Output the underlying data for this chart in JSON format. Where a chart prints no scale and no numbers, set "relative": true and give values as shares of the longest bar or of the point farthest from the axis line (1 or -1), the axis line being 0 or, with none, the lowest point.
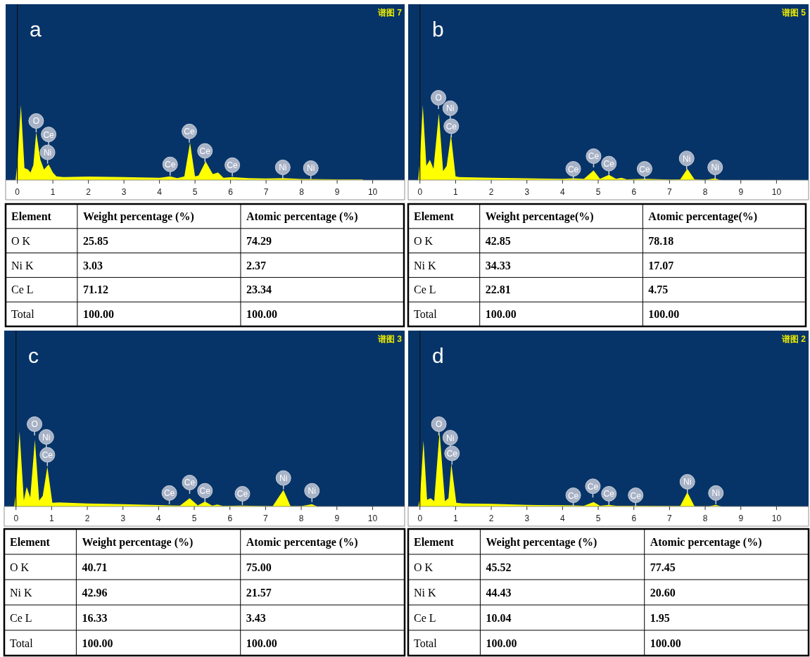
{
  "chart_data": [
    {
      "type": "area",
      "title": "a",
      "relative": true,
      "xlim": [
        -0.33,
        10.9
      ],
      "xticks": [
        0,
        1,
        2,
        3,
        4,
        5,
        6,
        7,
        8,
        9,
        10
      ],
      "annotations": [
        "谱图 7",
        {
          "text": "O",
          "x": 0.53,
          "y": 0.79
        },
        {
          "text": "Ce",
          "x": 0.88,
          "y": 0.61
        },
        {
          "text": "Ni",
          "x": 0.85,
          "y": 0.37
        },
        {
          "text": "Ce",
          "x": 4.3,
          "y": 0.21
        },
        {
          "text": "Ce",
          "x": 4.84,
          "y": 0.65
        },
        {
          "text": "Ce",
          "x": 5.28,
          "y": 0.39
        },
        {
          "text": "Ce",
          "x": 6.05,
          "y": 0.2
        },
        {
          "text": "Ni",
          "x": 7.47,
          "y": 0.17
        },
        {
          "text": "Ni",
          "x": 8.26,
          "y": 0.16
        }
      ],
      "series": [
        {
          "color": "#ffff00",
          "x": [
            -0.05,
            0,
            0.1,
            0.2,
            0.3,
            0.37,
            0.45,
            0.53,
            0.65,
            0.75,
            0.88,
            1.0,
            1.1,
            1.3,
            2,
            3,
            4,
            4.3,
            4.5,
            4.7,
            4.86,
            5.0,
            5.1,
            5.3,
            5.5,
            5.65,
            5.8,
            6.05,
            6.5,
            7,
            7.5,
            8,
            9,
            9.7,
            9.75
          ],
          "values": [
            0,
            0.23,
            1.0,
            0.16,
            0.14,
            0.1,
            0.2,
            0.64,
            0.27,
            0.14,
            0.21,
            0.1,
            0.05,
            0.04,
            0.046,
            0.04,
            0.03,
            0.05,
            0.025,
            0.05,
            0.5,
            0.05,
            0.06,
            0.25,
            0.08,
            0.1,
            0.03,
            0.04,
            0.025,
            0.02,
            0.025,
            0.015,
            0.01,
            0.01,
            0
          ]
        }
      ]
    },
    {
      "type": "area",
      "title": "b",
      "relative": true,
      "xlim": [
        -0.33,
        10.9
      ],
      "xticks": [
        0,
        1,
        2,
        3,
        4,
        5,
        6,
        7,
        8,
        9,
        10
      ],
      "annotations": [
        "谱图 5",
        {
          "text": "O",
          "x": 0.52,
          "y": 1.1
        },
        {
          "text": "Ni",
          "x": 0.85,
          "y": 0.96
        },
        {
          "text": "Ce",
          "x": 0.88,
          "y": 0.72
        },
        {
          "text": "Ce",
          "x": 4.3,
          "y": 0.15
        },
        {
          "text": "Ce",
          "x": 4.87,
          "y": 0.32
        },
        {
          "text": "Ce",
          "x": 5.3,
          "y": 0.22
        },
        {
          "text": "Ce",
          "x": 6.3,
          "y": 0.15
        },
        {
          "text": "Ni",
          "x": 7.48,
          "y": 0.29
        },
        {
          "text": "Ni",
          "x": 8.28,
          "y": 0.17
        }
      ],
      "series": [
        {
          "color": "#ffff00",
          "x": [
            -0.05,
            0,
            0.08,
            0.18,
            0.28,
            0.38,
            0.53,
            0.65,
            0.75,
            0.87,
            1.0,
            1.1,
            2,
            3,
            4,
            4.3,
            4.6,
            4.87,
            5.05,
            5.3,
            5.5,
            5.65,
            5.8,
            6.3,
            7,
            7.3,
            7.5,
            7.7,
            8.0,
            8.28,
            8.4,
            8.5
          ],
          "values": [
            0,
            0.27,
            1.0,
            0.19,
            0.27,
            0.15,
            0.89,
            0.12,
            0.19,
            0.6,
            0.05,
            0.04,
            0.03,
            0.024,
            0.017,
            0.024,
            0.017,
            0.13,
            0.017,
            0.07,
            0.017,
            0.03,
            0.01,
            0.017,
            0.007,
            0.01,
            0.15,
            0.01,
            0.003,
            0.024,
            0.003,
            0
          ]
        }
      ]
    },
    {
      "type": "other",
      "ylabel": "Element",
      "categories": [
        "Weight percentage (%)",
        "Atomic percentage (%)"
      ],
      "y_categories": [
        "O K",
        "Ni K",
        "Ce L",
        "Total"
      ],
      "cell_labels": [
        [
          "25.85",
          "74.29"
        ],
        [
          "3.03",
          "2.37"
        ],
        [
          "71.12",
          "23.34"
        ],
        [
          "100.00",
          "100.00"
        ]
      ]
    },
    {
      "type": "other",
      "ylabel": "Element",
      "categories": [
        "Weight percentage(%)",
        "Atomic percentage(%)"
      ],
      "y_categories": [
        "O K",
        "Ni K",
        "Ce L",
        "Total"
      ],
      "cell_labels": [
        [
          "42.85",
          "78.18"
        ],
        [
          "34.33",
          "17.07"
        ],
        [
          "22.81",
          "4.75"
        ],
        [
          "100.00",
          "100.00"
        ]
      ]
    },
    {
      "type": "area",
      "title": "c",
      "relative": true,
      "xlim": [
        -0.33,
        10.9
      ],
      "xticks": [
        0,
        1,
        2,
        3,
        4,
        5,
        6,
        7,
        8,
        9,
        10
      ],
      "annotations": [
        "谱图 3",
        {
          "text": "O",
          "x": 0.52,
          "y": 1.1
        },
        {
          "text": "Ni",
          "x": 0.85,
          "y": 0.93
        },
        {
          "text": "Ce",
          "x": 0.88,
          "y": 0.69
        },
        {
          "text": "Ce",
          "x": 4.3,
          "y": 0.18
        },
        {
          "text": "Ce",
          "x": 4.87,
          "y": 0.32
        },
        {
          "text": "Ce",
          "x": 5.3,
          "y": 0.21
        },
        {
          "text": "Ce",
          "x": 6.35,
          "y": 0.17
        },
        {
          "text": "Ni",
          "x": 7.5,
          "y": 0.38
        },
        {
          "text": "Ni",
          "x": 8.3,
          "y": 0.21
        }
      ],
      "series": [
        {
          "color": "#ffff00",
          "x": [
            -0.05,
            0,
            0.1,
            0.22,
            0.3,
            0.4,
            0.53,
            0.65,
            0.75,
            0.88,
            1.02,
            1.2,
            2,
            3,
            4,
            4.3,
            4.6,
            4.87,
            5.1,
            5.3,
            5.5,
            5.65,
            5.8,
            6.3,
            6.8,
            7.2,
            7.5,
            7.7,
            8.0,
            8.3,
            8.45
          ],
          "values": [
            0,
            0.19,
            1.0,
            0.08,
            0.26,
            0.12,
            0.89,
            0.08,
            0.14,
            0.53,
            0.05,
            0.055,
            0.04,
            0.03,
            0.018,
            0.015,
            0.011,
            0.11,
            0.015,
            0.066,
            0.011,
            0.026,
            0.007,
            0.011,
            0.007,
            0.004,
            0.22,
            0.004,
            0.004,
            0.03,
            0
          ]
        }
      ]
    },
    {
      "type": "area",
      "title": "d",
      "relative": true,
      "xlim": [
        -0.33,
        10.9
      ],
      "xticks": [
        0,
        1,
        2,
        3,
        4,
        5,
        6,
        7,
        8,
        9,
        10
      ],
      "annotations": [
        "谱图 2",
        {
          "text": "O",
          "x": 0.53,
          "y": 1.1
        },
        {
          "text": "Ni",
          "x": 0.85,
          "y": 0.92
        },
        {
          "text": "Ce",
          "x": 0.9,
          "y": 0.71
        },
        {
          "text": "Ce",
          "x": 4.3,
          "y": 0.15
        },
        {
          "text": "Ce",
          "x": 4.85,
          "y": 0.27
        },
        {
          "text": "Ce",
          "x": 5.3,
          "y": 0.17
        },
        {
          "text": "Ce",
          "x": 6.05,
          "y": 0.15
        },
        {
          "text": "Ni",
          "x": 7.5,
          "y": 0.33
        },
        {
          "text": "Ni",
          "x": 8.3,
          "y": 0.18
        }
      ],
      "series": [
        {
          "color": "#ffff00",
          "x": [
            -0.05,
            0,
            0.1,
            0.2,
            0.3,
            0.4,
            0.55,
            0.7,
            0.8,
            0.88,
            1.02,
            1.2,
            2,
            3,
            4,
            4.3,
            4.6,
            4.87,
            5.05,
            5.3,
            5.5,
            6,
            7,
            7.3,
            7.5,
            7.7,
            8.1,
            8.3,
            8.45
          ],
          "values": [
            0,
            0.1,
            0.88,
            0.09,
            0.11,
            0.07,
            1.0,
            0.07,
            0.11,
            0.57,
            0.05,
            0.04,
            0.035,
            0.02,
            0.016,
            0.013,
            0.01,
            0.058,
            0.01,
            0.022,
            0.01,
            0.01,
            0.006,
            0.006,
            0.19,
            0.003,
            0.003,
            0.02,
            0
          ]
        }
      ]
    },
    {
      "type": "other",
      "ylabel": "Element",
      "categories": [
        "Weight percentage (%)",
        "Atomic percentage (%)"
      ],
      "y_categories": [
        "O K",
        "Ni K",
        "Ce L",
        "Total"
      ],
      "cell_labels": [
        [
          "40.71",
          "75.00"
        ],
        [
          "42.96",
          "21.57"
        ],
        [
          "16.33",
          "3.43"
        ],
        [
          "100.00",
          "100.00"
        ]
      ]
    },
    {
      "type": "other",
      "ylabel": "Element",
      "categories": [
        "Weight percentage (%)",
        "Atomic percentage (%)"
      ],
      "y_categories": [
        "O K",
        "Ni K",
        "Ce L",
        "Total"
      ],
      "cell_labels": [
        [
          "45.52",
          "77.45"
        ],
        [
          "44.43",
          "20.60"
        ],
        [
          "10.04",
          "1.95"
        ],
        [
          "100.00",
          "100.00"
        ]
      ]
    }
  ]
}
